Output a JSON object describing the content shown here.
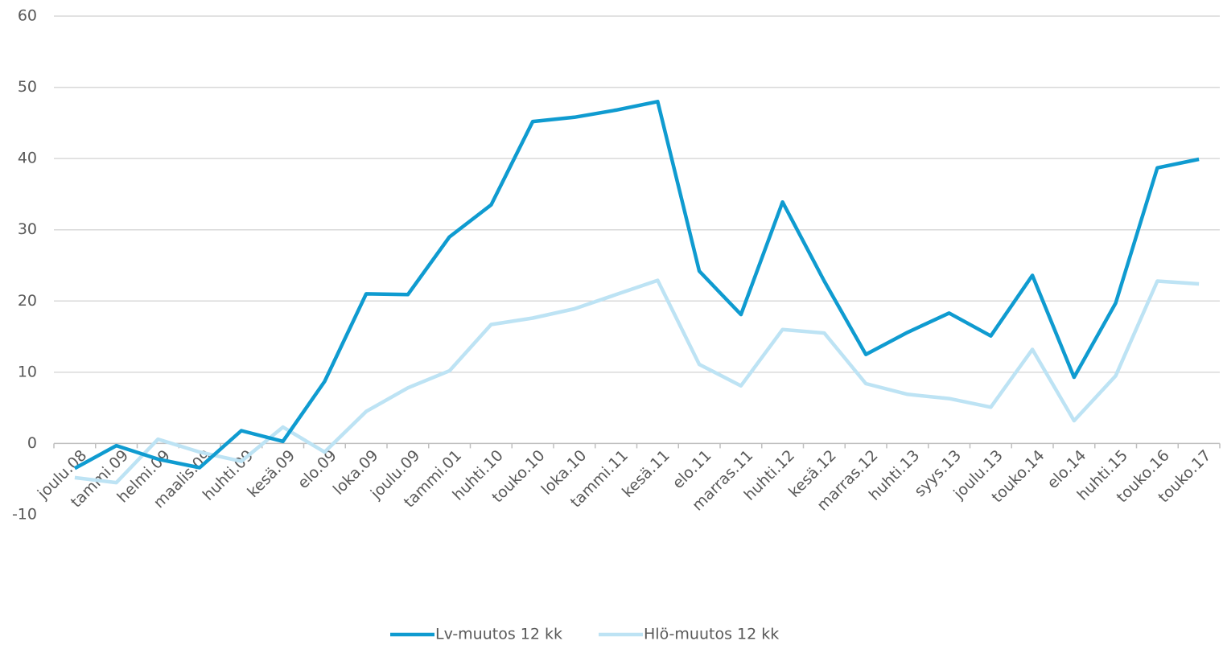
{
  "chart_data": {
    "type": "line",
    "categories": [
      "joulu.08",
      "tammi.09",
      "helmi.09",
      "maalis.09",
      "huhti.09",
      "kesä.09",
      "elo.09",
      "loka.09",
      "joulu.09",
      "tammi.01",
      "huhti.10",
      "touko.10",
      "loka.10",
      "tammi.11",
      "kesä.11",
      "elo.11",
      "marras.11",
      "huhti.12",
      "kesä.12",
      "marras.12",
      "huhti.13",
      "syys.13",
      "joulu.13",
      "touko.14",
      "elo.14",
      "huhti.15",
      "touko.16",
      "touko.17"
    ],
    "series": [
      {
        "name": "Lv-muutos 12 kk",
        "color": "#0f9bd0",
        "values": [
          -3.5,
          -0.3,
          -2.2,
          -3.4,
          1.8,
          0.3,
          8.7,
          21,
          20.9,
          29,
          33.5,
          45.2,
          45.8,
          46.8,
          48,
          24.2,
          18.1,
          33.9,
          22.8,
          12.5,
          15.6,
          18.3,
          15.1,
          23.6,
          9.3,
          19.7,
          38.7,
          39.9
        ]
      },
      {
        "name": "Hlö-muutos 12 kk",
        "color": "#bde3f4",
        "values": [
          -4.8,
          -5.5,
          0.6,
          -1.2,
          -2.5,
          2.3,
          -1.2,
          4.5,
          7.8,
          10.2,
          16.7,
          17.6,
          18.9,
          20.9,
          22.9,
          11.1,
          8.1,
          16.0,
          15.5,
          8.4,
          6.9,
          6.3,
          5.1,
          13.2,
          3.2,
          9.5,
          22.8,
          22.4
        ]
      }
    ],
    "ylim": [
      -10,
      60
    ],
    "yticks": [
      -10,
      0,
      10,
      20,
      30,
      40,
      50,
      60
    ],
    "grid": true,
    "legend": "bottom"
  }
}
